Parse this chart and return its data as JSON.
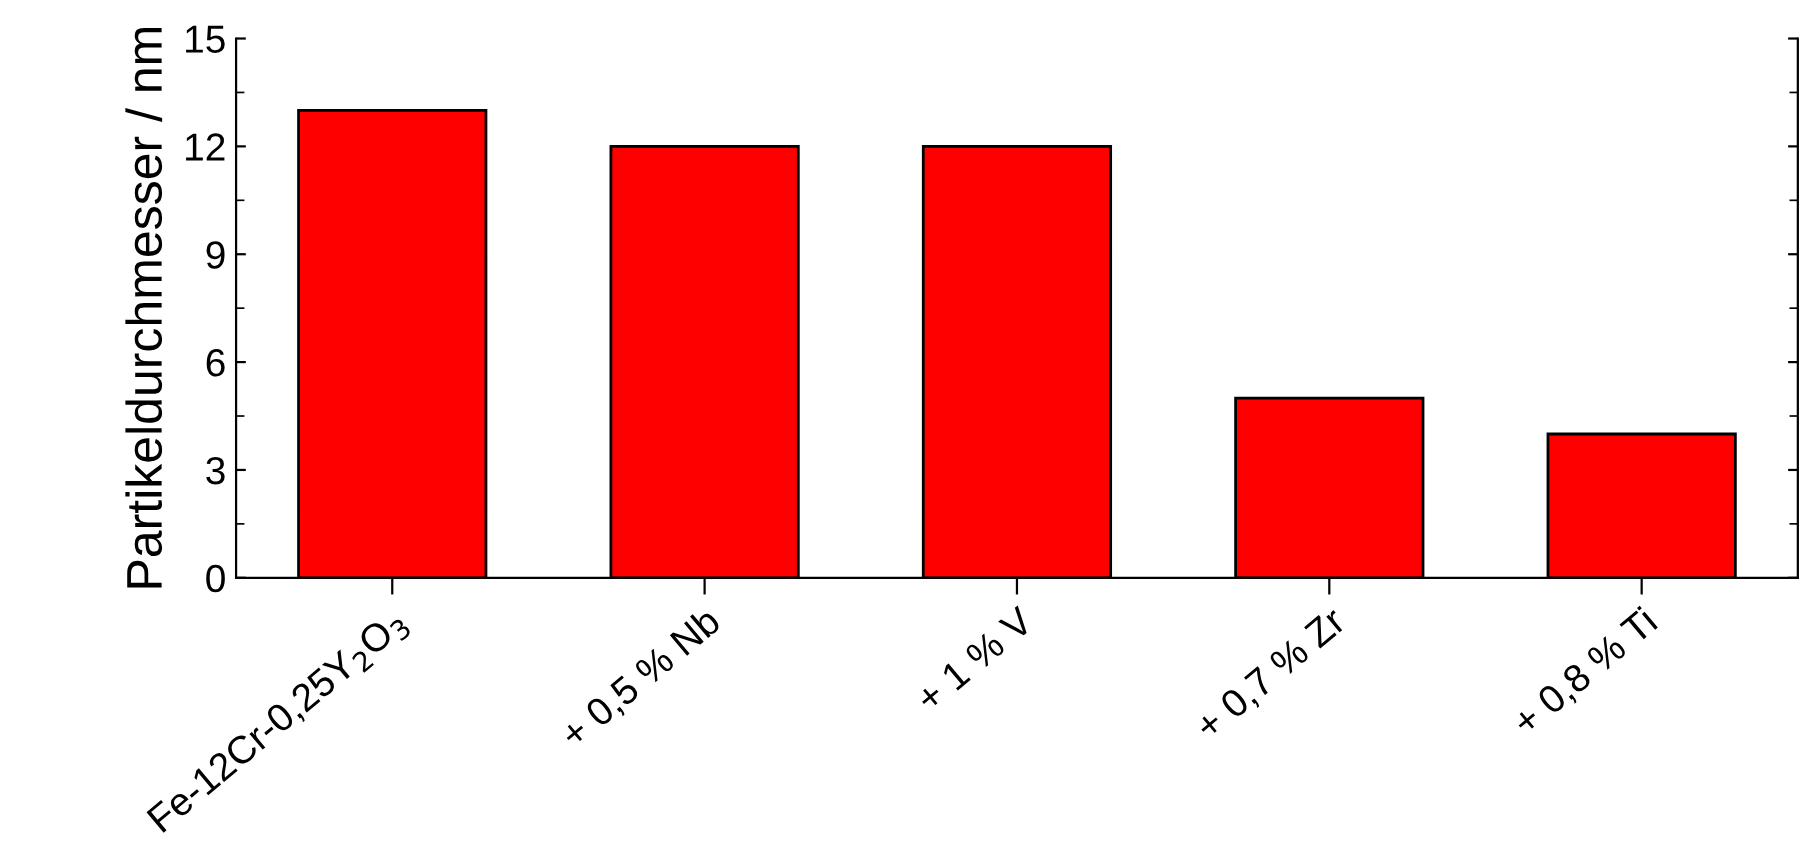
{
  "chart_data": {
    "type": "bar",
    "ylabel": "Partikeldurchmesser / nm",
    "categories": [
      "Fe-12Cr-0,25Y$_{2}$O$_{3}$",
      "+ 0,5 % Nb",
      "+ 1 % V",
      "+ 0,7 % Zr",
      "+ 0,8 % Ti"
    ],
    "values": [
      13,
      12,
      12,
      5,
      4
    ],
    "color": "#ff0000",
    "ylim": [
      0,
      15
    ],
    "yticks": [
      0,
      3,
      6,
      9,
      12,
      15
    ],
    "grid": false
  }
}
